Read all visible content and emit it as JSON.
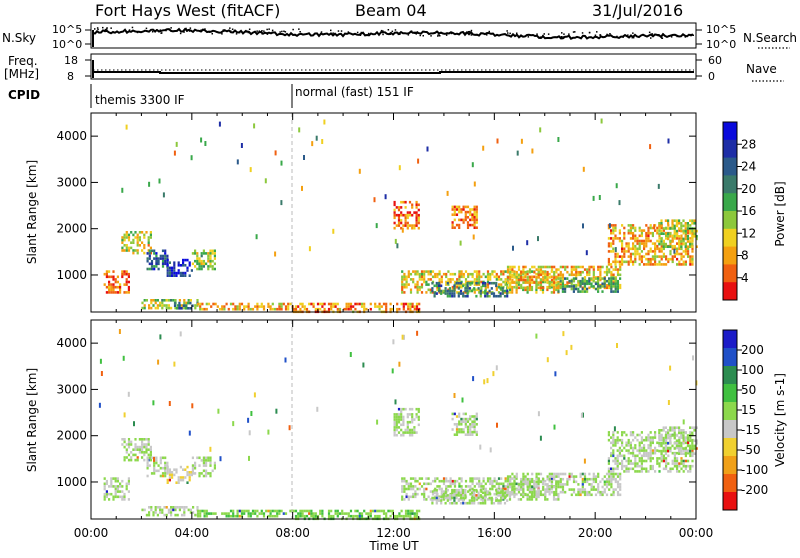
{
  "header": {
    "station": "Fort Hays West (fitACF)",
    "beam": "Beam 04",
    "date": "31/Jul/2016"
  },
  "status_panels": {
    "nsky_label": "N.Sky",
    "nsky_ticks": [
      "10^5",
      "10^0"
    ],
    "nsearch_label": "N.Search",
    "nsearch_ticks": [
      "10^5",
      "10^0"
    ],
    "freq_label": "Freq.",
    "freq_unit": "[MHz]",
    "freq_ticks": [
      "18",
      "8"
    ],
    "nave_label": "Nave",
    "nave_ticks": [
      "60",
      "0"
    ],
    "cpid_label": "CPID",
    "cpid_segments": [
      {
        "start_hour": 0.0,
        "label": "themis 3300 IF"
      },
      {
        "start_hour": 8.0,
        "label": "normal (fast) 151 IF"
      }
    ]
  },
  "chart_data": [
    {
      "type": "heatmap",
      "name": "power-panel",
      "ylabel": "Slant Range [km]",
      "xlim": [
        0,
        24
      ],
      "ylim": [
        200,
        4500
      ],
      "yticks": [
        "1000",
        "2000",
        "3000",
        "4000"
      ],
      "colorbar": {
        "label": "Power [dB]",
        "ticks": [
          "28",
          "24",
          "20",
          "16",
          "12",
          "8",
          "4"
        ],
        "colors": [
          "#0a0adc",
          "#1e2ea6",
          "#2b5a8a",
          "#3a7a6a",
          "#39a84a",
          "#8cc83c",
          "#f0d020",
          "#f4a010",
          "#f06010",
          "#e81010"
        ],
        "range": [
          0,
          32
        ]
      },
      "regions": [
        {
          "x0": 0.5,
          "x1": 1.5,
          "y0": 650,
          "y1": 1100,
          "v": 5
        },
        {
          "x0": 1.2,
          "x1": 2.4,
          "y0": 1450,
          "y1": 1950,
          "v": 12
        },
        {
          "x0": 2.2,
          "x1": 3.0,
          "y0": 1150,
          "y1": 1550,
          "v": 24
        },
        {
          "x0": 3.0,
          "x1": 4.0,
          "y0": 1000,
          "y1": 1350,
          "v": 27
        },
        {
          "x0": 4.0,
          "x1": 4.9,
          "y0": 1150,
          "y1": 1550,
          "v": 14
        },
        {
          "x0": 2.0,
          "x1": 4.2,
          "y0": 280,
          "y1": 480,
          "v": 14
        },
        {
          "x0": 3.2,
          "x1": 4.0,
          "y0": 300,
          "y1": 420,
          "v": 22
        },
        {
          "x0": 4.2,
          "x1": 8.0,
          "y0": 240,
          "y1": 400,
          "v": 9
        },
        {
          "x0": 8.0,
          "x1": 13.0,
          "y0": 230,
          "y1": 400,
          "v": 7
        },
        {
          "x0": 12.3,
          "x1": 18.5,
          "y0": 600,
          "y1": 1100,
          "v": 11
        },
        {
          "x0": 13.5,
          "x1": 16.5,
          "y0": 550,
          "y1": 850,
          "v": 21
        },
        {
          "x0": 16.5,
          "x1": 21.0,
          "y0": 750,
          "y1": 1200,
          "v": 10
        },
        {
          "x0": 18.5,
          "x1": 21.0,
          "y0": 650,
          "y1": 950,
          "v": 18
        },
        {
          "x0": 20.5,
          "x1": 23.9,
          "y0": 1250,
          "y1": 2100,
          "v": 9
        },
        {
          "x0": 22.5,
          "x1": 24.0,
          "y0": 1600,
          "y1": 2200,
          "v": 13
        },
        {
          "x0": 12.0,
          "x1": 13.0,
          "y0": 2000,
          "y1": 2600,
          "v": 5
        },
        {
          "x0": 14.3,
          "x1": 15.3,
          "y0": 2000,
          "y1": 2500,
          "v": 6
        }
      ]
    },
    {
      "type": "heatmap",
      "name": "velocity-panel",
      "ylabel": "Slant Range [km]",
      "xlabel": "Time UT",
      "xlim": [
        0,
        24
      ],
      "ylim": [
        200,
        4500
      ],
      "yticks": [
        "1000",
        "2000",
        "3000",
        "4000"
      ],
      "xticks": [
        "00:00",
        "04:00",
        "08:00",
        "12:00",
        "16:00",
        "20:00",
        "00:00"
      ],
      "xtick_values": [
        0,
        4,
        8,
        12,
        16,
        20,
        24
      ],
      "colorbar": {
        "label": "Velocity [m s-1]",
        "ticks": [
          "200",
          "100",
          "50",
          "15",
          "-15",
          "-50",
          "-100",
          "-200"
        ],
        "colors": [
          "#1c1cc8",
          "#2050c8",
          "#2c8c50",
          "#40c040",
          "#8cd84c",
          "#c8c8c8",
          "#f0d030",
          "#f0a018",
          "#f06010",
          "#e81010"
        ],
        "range": [
          -250,
          250
        ]
      },
      "regions": [
        {
          "x0": 0.5,
          "x1": 1.5,
          "y0": 650,
          "y1": 1100,
          "v": 0
        },
        {
          "x0": 1.2,
          "x1": 2.4,
          "y0": 1450,
          "y1": 1950,
          "v": 0
        },
        {
          "x0": 2.2,
          "x1": 3.0,
          "y0": 1150,
          "y1": 1550,
          "v": 0
        },
        {
          "x0": 3.0,
          "x1": 4.0,
          "y0": 1000,
          "y1": 1350,
          "v": -40
        },
        {
          "x0": 4.0,
          "x1": 4.9,
          "y0": 1150,
          "y1": 1550,
          "v": 0
        },
        {
          "x0": 2.0,
          "x1": 4.2,
          "y0": 280,
          "y1": 480,
          "v": 0
        },
        {
          "x0": 4.2,
          "x1": 8.0,
          "y0": 240,
          "y1": 400,
          "v": 40
        },
        {
          "x0": 8.0,
          "x1": 13.0,
          "y0": 230,
          "y1": 400,
          "v": 35
        },
        {
          "x0": 12.3,
          "x1": 18.5,
          "y0": 600,
          "y1": 1100,
          "v": 0
        },
        {
          "x0": 13.5,
          "x1": 16.5,
          "y0": 550,
          "y1": 850,
          "v": 0
        },
        {
          "x0": 16.5,
          "x1": 21.0,
          "y0": 750,
          "y1": 1200,
          "v": 0
        },
        {
          "x0": 20.5,
          "x1": 23.9,
          "y0": 1250,
          "y1": 2100,
          "v": 0
        },
        {
          "x0": 22.5,
          "x1": 24.0,
          "y0": 1600,
          "y1": 2200,
          "v": 0
        },
        {
          "x0": 12.0,
          "x1": 13.0,
          "y0": 2000,
          "y1": 2600,
          "v": 0
        },
        {
          "x0": 14.3,
          "x1": 15.3,
          "y0": 2000,
          "y1": 2500,
          "v": 0
        }
      ]
    }
  ]
}
